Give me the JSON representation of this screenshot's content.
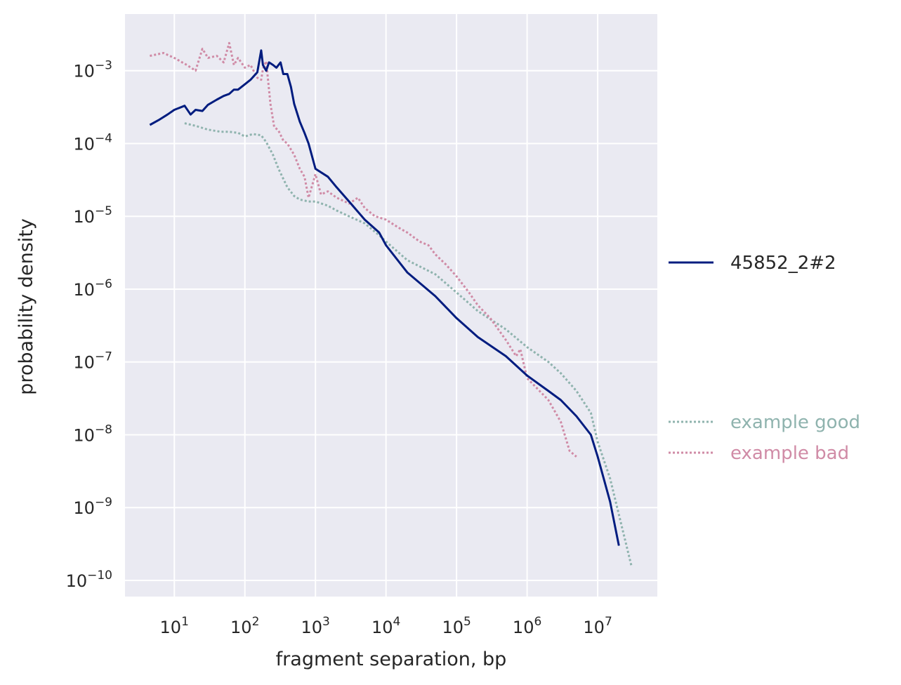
{
  "chart_data": {
    "type": "line",
    "title": "",
    "xlabel": "fragment separation, bp",
    "ylabel": "probability density",
    "xscale": "log",
    "yscale": "log",
    "xlim": [
      2,
      70000000
    ],
    "ylim": [
      6e-11,
      0.006
    ],
    "grid": true,
    "x_ticks": [
      {
        "value": 10,
        "base": "10",
        "exp": "1"
      },
      {
        "value": 100,
        "base": "10",
        "exp": "2"
      },
      {
        "value": 1000,
        "base": "10",
        "exp": "3"
      },
      {
        "value": 10000,
        "base": "10",
        "exp": "4"
      },
      {
        "value": 100000,
        "base": "10",
        "exp": "5"
      },
      {
        "value": 1000000,
        "base": "10",
        "exp": "6"
      },
      {
        "value": 10000000,
        "base": "10",
        "exp": "7"
      }
    ],
    "y_ticks": [
      {
        "value": 0.001,
        "base": "10",
        "exp": "−3"
      },
      {
        "value": 0.0001,
        "base": "10",
        "exp": "−4"
      },
      {
        "value": 1e-05,
        "base": "10",
        "exp": "−5"
      },
      {
        "value": 1e-06,
        "base": "10",
        "exp": "−6"
      },
      {
        "value": 1e-07,
        "base": "10",
        "exp": "−7"
      },
      {
        "value": 1e-08,
        "base": "10",
        "exp": "−8"
      },
      {
        "value": 1e-09,
        "base": "10",
        "exp": "−9"
      },
      {
        "value": 1e-10,
        "base": "10",
        "exp": "−10"
      }
    ],
    "series": [
      {
        "name": "example good",
        "style": "dotted",
        "color": "#8fb3ae",
        "x": [
          14,
          20,
          30,
          45,
          60,
          80,
          100,
          130,
          170,
          200,
          250,
          300,
          400,
          500,
          600,
          800,
          1000,
          1500,
          2000,
          3000,
          5000,
          8000,
          10000,
          20000,
          50000,
          100000,
          200000,
          500000,
          1000000,
          2000000,
          3000000,
          5000000,
          8000000,
          10000000,
          15000000,
          20000000,
          30000000
        ],
        "y": [
          0.00019,
          0.000175,
          0.000155,
          0.000145,
          0.000145,
          0.00014,
          0.000125,
          0.000135,
          0.00013,
          0.000105,
          7e-05,
          4.5e-05,
          2.5e-05,
          1.9e-05,
          1.7e-05,
          1.6e-05,
          1.6e-05,
          1.4e-05,
          1.2e-05,
          1e-05,
          8e-06,
          5.5e-06,
          4.5e-06,
          2.5e-06,
          1.6e-06,
          9e-07,
          5e-07,
          2.8e-07,
          1.6e-07,
          1e-07,
          7e-08,
          4e-08,
          2e-08,
          8e-09,
          2.5e-09,
          8e-10,
          1.6e-10
        ]
      },
      {
        "name": "example bad",
        "style": "dotted",
        "color": "#d08ba6",
        "x": [
          4.5,
          7,
          10,
          15,
          20,
          25,
          30,
          40,
          50,
          60,
          70,
          80,
          100,
          120,
          150,
          170,
          180,
          200,
          230,
          260,
          300,
          350,
          400,
          500,
          600,
          700,
          800,
          1000,
          1200,
          1500,
          2000,
          3000,
          4000,
          5000,
          7000,
          10000,
          15000,
          20000,
          30000,
          40000,
          50000,
          70000,
          100000,
          150000,
          200000,
          300000,
          500000,
          700000,
          800000,
          1000000,
          1500000,
          2000000,
          3000000,
          4000000,
          5000000
        ],
        "y": [
          0.0016,
          0.00175,
          0.0015,
          0.0012,
          0.001,
          0.002,
          0.0015,
          0.0016,
          0.0013,
          0.0024,
          0.0012,
          0.0015,
          0.0011,
          0.0012,
          0.0008,
          0.00075,
          0.00105,
          0.00135,
          0.00035,
          0.00017,
          0.00015,
          0.00011,
          0.0001,
          7e-05,
          4.5e-05,
          3.5e-05,
          1.8e-05,
          3.8e-05,
          2e-05,
          2.2e-05,
          1.8e-05,
          1.5e-05,
          1.8e-05,
          1.3e-05,
          1e-05,
          9e-06,
          7e-06,
          6e-06,
          4.5e-06,
          4e-06,
          3e-06,
          2.2e-06,
          1.5e-06,
          9e-07,
          6e-07,
          4e-07,
          2e-07,
          1.2e-07,
          1.5e-07,
          6e-08,
          4e-08,
          3e-08,
          1.5e-08,
          6e-09,
          5e-09
        ]
      },
      {
        "name": "45852_2#2",
        "style": "solid",
        "color": "#001c7f",
        "x": [
          4.5,
          6,
          8,
          10,
          14,
          17,
          20,
          25,
          30,
          40,
          50,
          60,
          70,
          80,
          100,
          120,
          150,
          170,
          180,
          200,
          220,
          250,
          280,
          320,
          350,
          400,
          450,
          500,
          600,
          700,
          800,
          1000,
          1500,
          2000,
          3000,
          5000,
          8000,
          10000,
          20000,
          50000,
          100000,
          200000,
          500000,
          1000000,
          2000000,
          3000000,
          5000000,
          8000000,
          10000000,
          15000000,
          20000000
        ],
        "y": [
          0.00018,
          0.00021,
          0.00025,
          0.00029,
          0.00033,
          0.00025,
          0.00029,
          0.00028,
          0.00034,
          0.0004,
          0.00045,
          0.00048,
          0.00055,
          0.00055,
          0.00065,
          0.00075,
          0.00095,
          0.0019,
          0.0012,
          0.001,
          0.0013,
          0.0012,
          0.0011,
          0.0013,
          0.0009,
          0.0009,
          0.0006,
          0.00035,
          0.0002,
          0.00014,
          0.0001,
          4.5e-05,
          3.5e-05,
          2.5e-05,
          1.6e-05,
          9e-06,
          6e-06,
          4e-06,
          1.7e-06,
          8e-07,
          4e-07,
          2.2e-07,
          1.2e-07,
          6.5e-08,
          4e-08,
          3e-08,
          1.8e-08,
          1e-08,
          5e-09,
          1.2e-09,
          3e-10
        ]
      }
    ],
    "legend": {
      "placement": "right",
      "main_entries": [
        "45852_2#2"
      ],
      "reference_entries": [
        "example good",
        "example bad"
      ]
    }
  },
  "colors": {
    "plot_background": "#eaeaf2",
    "grid": "#ffffff",
    "text": "#262626"
  }
}
